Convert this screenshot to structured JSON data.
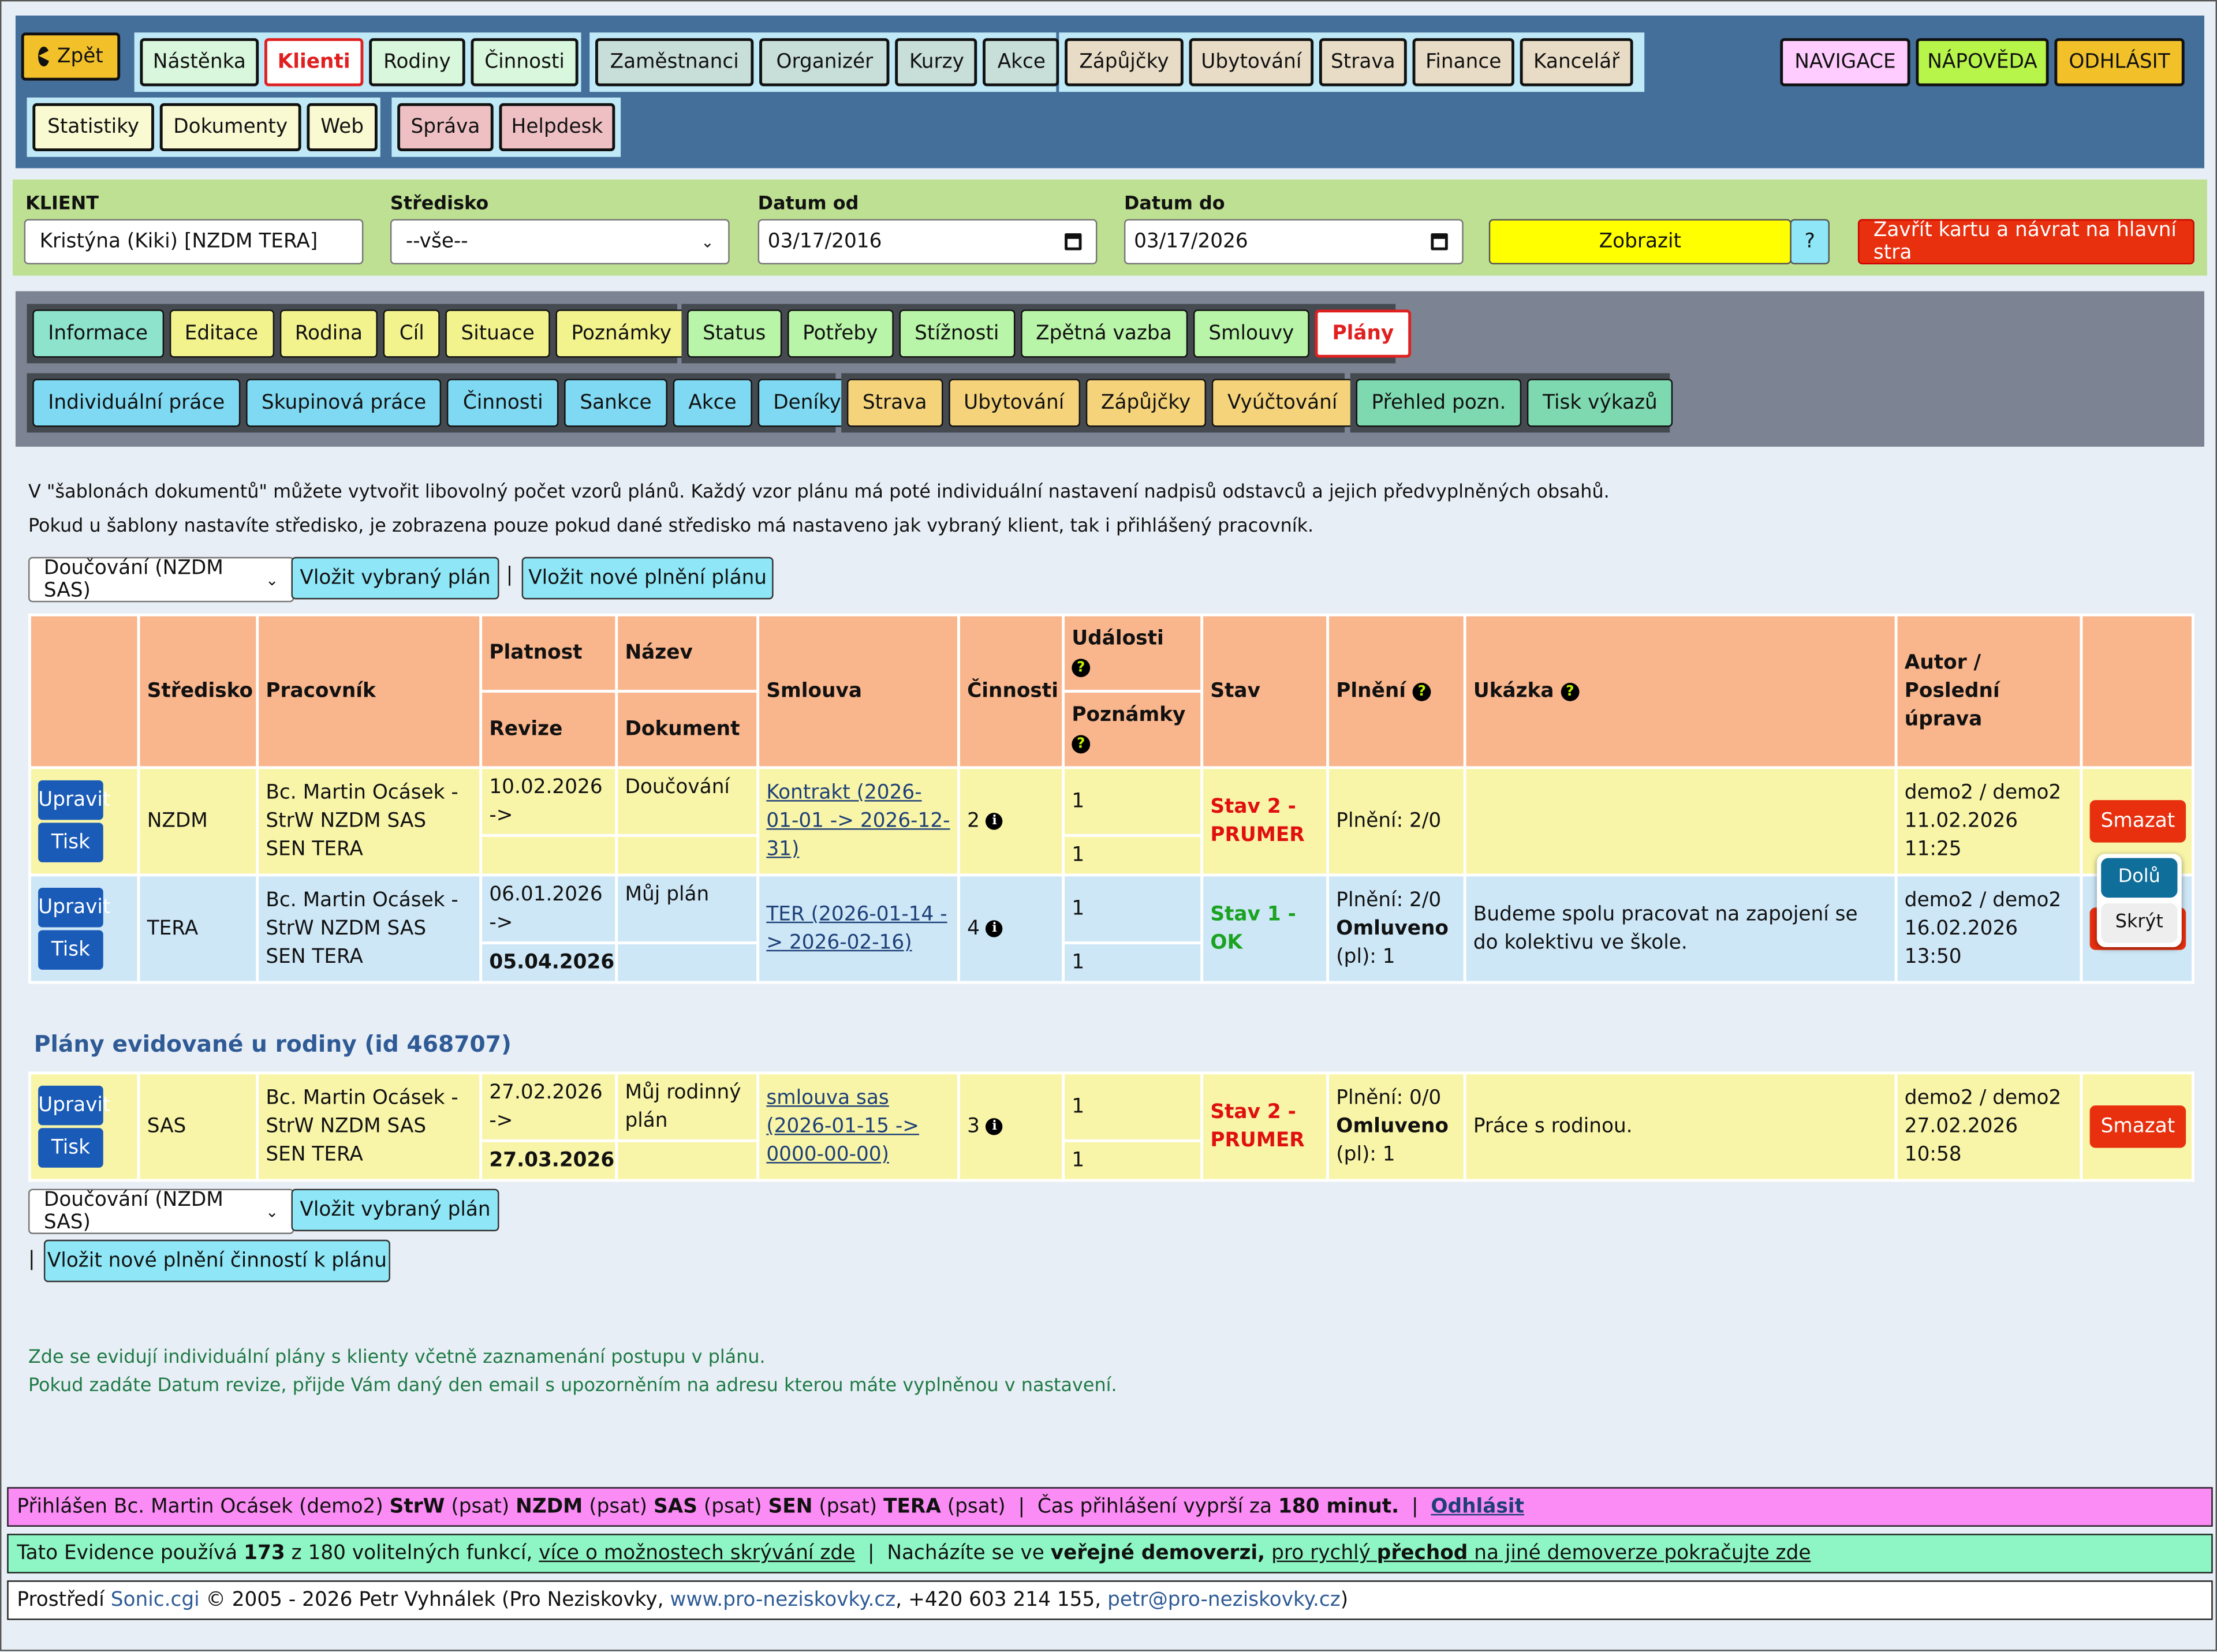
{
  "nav": {
    "back": "Zpět",
    "group1": [
      "Nástěnka",
      "Klienti",
      "Rodiny",
      "Činnosti"
    ],
    "group2": [
      "Zaměstnanci",
      "Organizér",
      "Kurzy",
      "Akce"
    ],
    "group3": [
      "Zápůjčky",
      "Ubytování",
      "Strava",
      "Finance",
      "Kancelář"
    ],
    "group4": [
      "Statistiky",
      "Dokumenty",
      "Web"
    ],
    "group5": [
      "Správa",
      "Helpdesk"
    ],
    "navigace": "NAVIGACE",
    "napoveda": "NÁPOVĚDA",
    "odhlasit": "ODHLÁSIT"
  },
  "filter": {
    "klient_label": "KLIENT",
    "klient_value": "Kristýna (Kiki) [NZDM TERA]",
    "stredisko_label": "Středisko",
    "stredisko_value": "--vše--",
    "od_label": "Datum od",
    "od_value": "03/17/2016",
    "do_label": "Datum do",
    "do_value": "03/17/2026",
    "zobrazit": "Zobrazit",
    "help": "?",
    "close": "Zavřít kartu a návrat na hlavní stra"
  },
  "tabs": {
    "row1a": [
      "Informace",
      "Editace",
      "Rodina",
      "Cíl",
      "Situace",
      "Poznámky"
    ],
    "row1b": [
      "Status",
      "Potřeby",
      "Stížnosti",
      "Zpětná vazba",
      "Smlouvy",
      "Plány"
    ],
    "row2a": [
      "Individuální práce",
      "Skupinová práce",
      "Činnosti",
      "Sankce",
      "Akce",
      "Deníky"
    ],
    "row2b": [
      "Strava",
      "Ubytování",
      "Zápůjčky",
      "Vyúčtování"
    ],
    "row2c": [
      "Přehled pozn.",
      "Tisk výkazů"
    ]
  },
  "info": {
    "line1": "V \"šablonách dokumentů\" můžete vytvořit libovolný počet vzorů plánů. Každý vzor plánu má poté individuální nastavení nadpisů odstavců a jejich předvyplněných obsahů.",
    "line2": "Pokud u šablony nastavíte středisko, je zobrazena pouze pokud dané středisko má nastaveno jak vybraný klient, tak i přihlášený pracovník."
  },
  "controls": {
    "select": "Doučování (NZDM SAS)",
    "vlozit": "Vložit vybraný plán",
    "sep": "|",
    "nove": "Vložit nové plnění plánu",
    "nove2": "Vložit nové plnění činností k plánu"
  },
  "table": {
    "h_stredisko": "Středisko",
    "h_pracovnik": "Pracovník",
    "h_platnost": "Platnost",
    "h_revize": "Revize",
    "h_nazev": "Název",
    "h_dokument": "Dokument",
    "h_smlouva": "Smlouva",
    "h_cinnosti": "Činnosti",
    "h_udalosti": "Události",
    "h_poznamky": "Poznámky",
    "h_stav": "Stav",
    "h_plneni": "Plnění",
    "h_ukazka": "Ukázka",
    "h_autor": "Autor / Poslední úprava",
    "upravit": "Upravit",
    "tisk": "Tisk",
    "smazat": "Smazat",
    "dolu": "Dolů",
    "skryt": "Skrýt",
    "rows": [
      {
        "stredisko": "NZDM",
        "pracovnik": "Bc. Martin Ocásek - StrW NZDM SAS SEN TERA",
        "platnost": "10.02.2026 ->",
        "revize": "",
        "nazev": "Doučování",
        "dokument": "",
        "smlouva": "Kontrakt (2026-01-01 -> 2026-12-31)",
        "cinnosti": "2",
        "udalosti": "1",
        "poznamky": "1",
        "stav": "Stav 2 - PRUMER",
        "plneni1": "Plnění: 2/0",
        "plneni2": "",
        "plneni3": "",
        "ukazka": "",
        "autor": "demo2 / demo2",
        "datum": "11.02.2026 11:25"
      },
      {
        "stredisko": "TERA",
        "pracovnik": "Bc. Martin Ocásek - StrW NZDM SAS SEN TERA",
        "platnost": "06.01.2026 ->",
        "revize": "05.04.2026",
        "nazev": "Můj plán",
        "dokument": "",
        "smlouva": "TER (2026-01-14 -> 2026-02-16)",
        "cinnosti": "4",
        "udalosti": "1",
        "poznamky": "1",
        "stav": "Stav 1 - OK",
        "plneni1": "Plnění: 2/0",
        "plneni2": "Omluveno",
        "plneni3": "(pl): 1",
        "ukazka": "Budeme spolu pracovat na zapojení se do kolektivu ve škole.",
        "autor": "demo2 / demo2",
        "datum": "16.02.2026 13:50"
      }
    ]
  },
  "family": {
    "title": "Plány evidované u rodiny (id 468707)",
    "row": {
      "stredisko": "SAS",
      "pracovnik": "Bc. Martin Ocásek - StrW NZDM SAS SEN TERA",
      "platnost": "27.02.2026 ->",
      "revize": "27.03.2026",
      "nazev": "Můj rodinný plán",
      "smlouva": "smlouva sas (2026-01-15 -> 0000-00-00)",
      "cinnosti": "3",
      "udalosti": "1",
      "poznamky": "1",
      "stav": "Stav 2 - PRUMER",
      "plneni1": "Plnění: 0/0",
      "plneni2": "Omluveno",
      "plneni3": "(pl): 1",
      "ukazka": "Práce s rodinou.",
      "autor": "demo2 / demo2",
      "datum": "27.02.2026 10:58"
    }
  },
  "notes": {
    "n1": "Zde se evidují individuální plány s klienty včetně zaznamenání postupu v plánu.",
    "n2": "Pokud zadáte Datum revize, přijde Vám daný den email s upozorněním na adresu kterou máte vyplněnou v nastavení."
  },
  "status": {
    "a": "Přihlášen Bc. Martin Ocásek (demo2)",
    "b": "StrW",
    "c": "(psat)",
    "d": "NZDM",
    "e": "SAS",
    "f": "SEN",
    "g": "TERA",
    "h": "Čas přihlášení vyprší za",
    "i": "180 minut.",
    "j": "Odhlásit",
    "k": "Tato Evidence používá",
    "l": "173",
    "m": "z 180 volitelných funkcí,",
    "n": "více o možnostech skrývání zde",
    "o": "Nacházíte se ve",
    "p": "veřejné demoverzi,",
    "q": "pro rychlý",
    "r": "přechod",
    "s": "na jiné demoverze pokračujte zde",
    "t": "Prostředí",
    "u": "Sonic.cgi",
    "v": "© 2005 - 2026 Petr Vyhnálek (Pro Neziskovky,",
    "w": "www.pro-neziskovky.cz",
    "x": ", +420 603 214 155,",
    "y": "petr@pro-neziskovky.cz",
    "z": ")"
  },
  "colors": {
    "accent_red": "#e8300e",
    "nav_bg": "#456f9b",
    "filter_bg": "#bde092",
    "header_orange": "#f9b58c"
  }
}
